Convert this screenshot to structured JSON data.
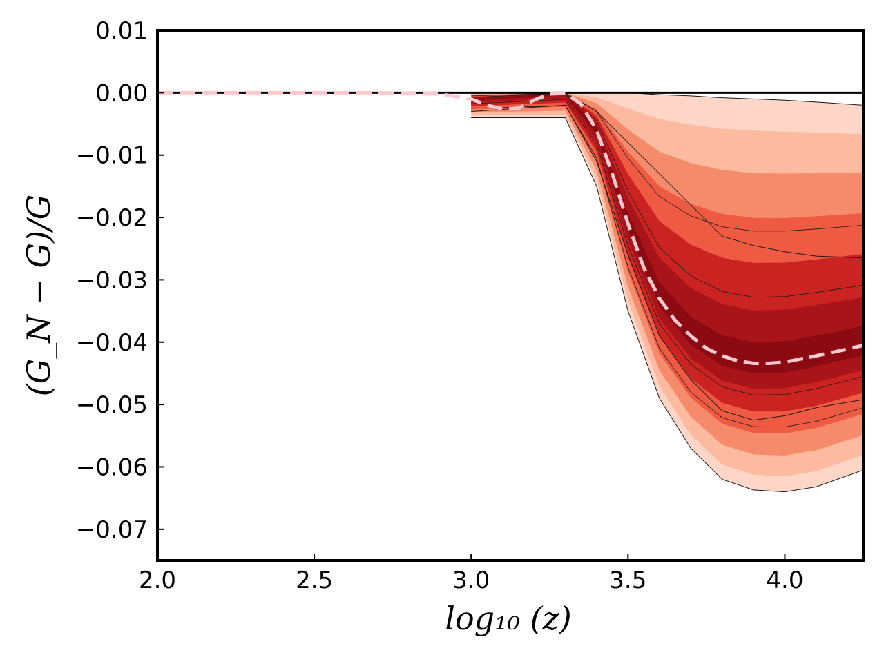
{
  "chart_data": {
    "type": "area",
    "title": "",
    "xlabel": "log₁₀ (z)",
    "ylabel": "(G_N − G)/G",
    "xlim": [
      2.0,
      4.25
    ],
    "ylim": [
      -0.075,
      0.01
    ],
    "grid": false,
    "legend": "none",
    "x_ticks": [
      2.0,
      2.5,
      3.0,
      3.5,
      4.0
    ],
    "x_tick_labels": [
      "2.0",
      "2.5",
      "3.0",
      "3.5",
      "4.0"
    ],
    "y_ticks": [
      0.01,
      0.0,
      -0.01,
      -0.02,
      -0.03,
      -0.04,
      -0.05,
      -0.06,
      -0.07
    ],
    "y_tick_labels": [
      "0.01",
      "0.00",
      "−0.01",
      "−0.02",
      "−0.03",
      "−0.04",
      "−0.05",
      "−0.06",
      "−0.07"
    ],
    "reference_line_y": 0.0,
    "median_curve": {
      "style": "dashed",
      "color": "#ffc8cf",
      "x": [
        2.0,
        2.7,
        2.9,
        3.0,
        3.05,
        3.1,
        3.15,
        3.2,
        3.25,
        3.3,
        3.35,
        3.4,
        3.45,
        3.5,
        3.55,
        3.6,
        3.65,
        3.7,
        3.75,
        3.8,
        3.85,
        3.9,
        3.95,
        4.0,
        4.1,
        4.2,
        4.25
      ],
      "y": [
        0.0,
        0.0,
        -0.0002,
        -0.001,
        -0.002,
        -0.0026,
        -0.0025,
        -0.0012,
        -0.0002,
        -0.0001,
        -0.0018,
        -0.006,
        -0.013,
        -0.021,
        -0.028,
        -0.033,
        -0.0365,
        -0.039,
        -0.041,
        -0.0422,
        -0.043,
        -0.0434,
        -0.0434,
        -0.0432,
        -0.0422,
        -0.0411,
        -0.0405
      ]
    },
    "band_outer": {
      "x": [
        3.0,
        3.3,
        3.4,
        3.5,
        3.6,
        3.7,
        3.8,
        3.9,
        4.0,
        4.1,
        4.25
      ],
      "upper": [
        0.0,
        0.0,
        0.0,
        0.0,
        -0.0003,
        -0.0005,
        -0.0008,
        -0.001,
        -0.0012,
        -0.0015,
        -0.002
      ],
      "lower": [
        -0.004,
        -0.004,
        -0.015,
        -0.035,
        -0.049,
        -0.057,
        -0.062,
        -0.0637,
        -0.064,
        -0.0632,
        -0.0605
      ]
    },
    "band_inner": {
      "x": [
        3.0,
        3.3,
        3.4,
        3.5,
        3.6,
        3.7,
        3.8,
        3.9,
        4.0,
        4.1,
        4.25
      ],
      "upper": [
        0.0,
        0.0,
        -0.003,
        -0.008,
        -0.013,
        -0.018,
        -0.023,
        -0.0245,
        -0.0255,
        -0.0262,
        -0.0265
      ],
      "lower": [
        -0.003,
        -0.002,
        -0.011,
        -0.026,
        -0.039,
        -0.046,
        -0.051,
        -0.0525,
        -0.0518,
        -0.0505,
        -0.0492
      ]
    },
    "colors": {
      "outer": "#fdd6c8",
      "mid": "#f58b6a",
      "core": "#cb2321",
      "dark": "#8c0b12",
      "median": "#ffc8cf",
      "contour": "#1a1a1a"
    }
  }
}
